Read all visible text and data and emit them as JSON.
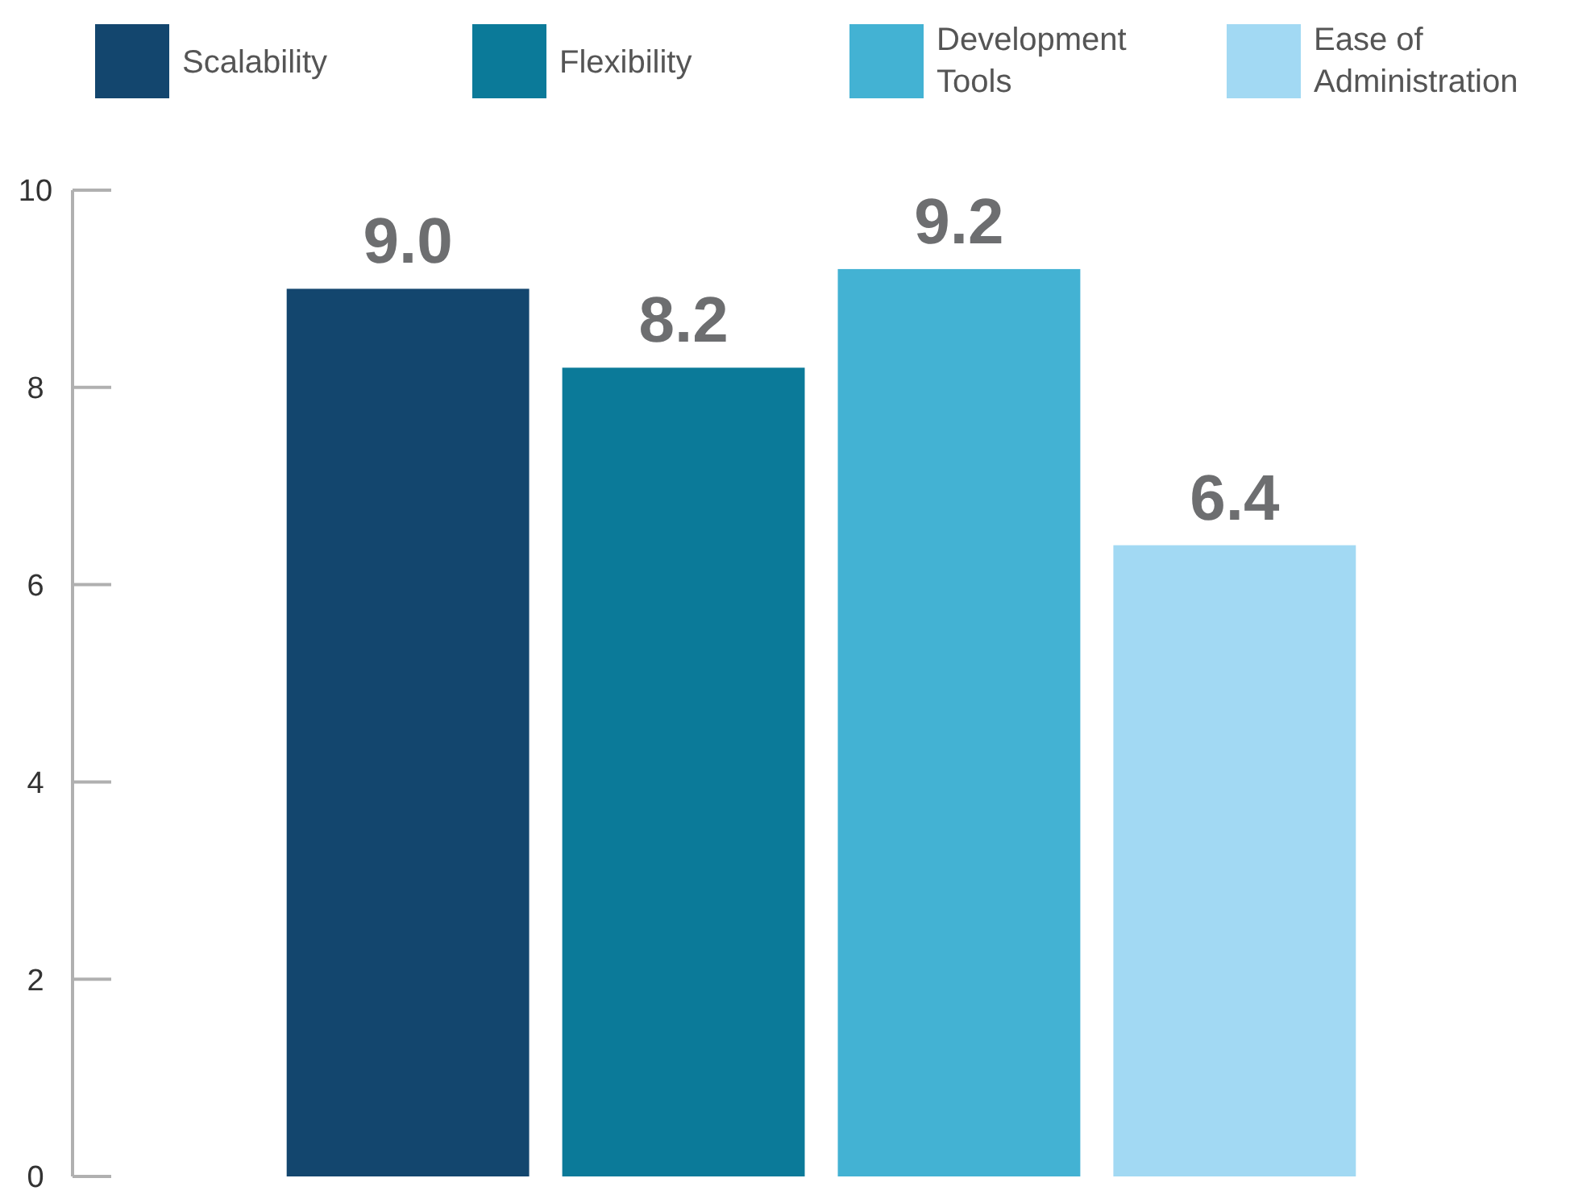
{
  "chart_data": {
    "type": "bar",
    "categories": [
      null
    ],
    "series": [
      {
        "name": "Scalability",
        "color": "#13466e",
        "values": [
          9.0
        ]
      },
      {
        "name": "Flexibility",
        "color": "#0b7a99",
        "values": [
          8.2
        ]
      },
      {
        "name": "Development Tools",
        "color": "#43b2d3",
        "values": [
          9.2
        ]
      },
      {
        "name": "Ease of Administration",
        "color": "#a2d9f3",
        "values": [
          6.4
        ]
      }
    ],
    "value_labels": [
      "9.0",
      "8.2",
      "9.2",
      "6.4"
    ],
    "ylim": [
      0,
      10
    ],
    "yticks": [
      0,
      2,
      4,
      6,
      8,
      10
    ],
    "grid": false,
    "legend": "top"
  }
}
